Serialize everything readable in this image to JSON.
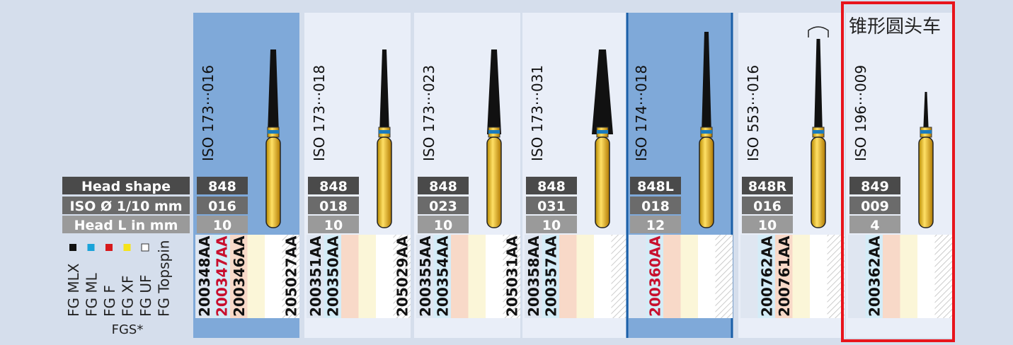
{
  "legend": {
    "row_labels": [
      "Head shape",
      "ISO Ø 1/10 mm",
      "Head L in mm"
    ],
    "grit_labels": [
      "FG MLX",
      "FG ML",
      "FG F",
      "FG XF",
      "FG UF",
      "FG Topspin"
    ],
    "grit_colors": [
      "#111111",
      "#1aa3d9",
      "#d7191c",
      "#f5e31a",
      "#ffffff",
      null
    ],
    "footer": "FGS*"
  },
  "heading": "锥形圆头车",
  "products": [
    {
      "iso": "ISO 173···016",
      "shape": "848",
      "diameter": "016",
      "length": "10",
      "highlighted": true,
      "codes": [
        {
          "text": "200348AA",
          "color": "#111111"
        },
        {
          "text": "200347AA",
          "color": "#c8102e"
        },
        {
          "text": "200346AA",
          "color": "#111111"
        },
        null,
        null,
        {
          "text": "205027AA",
          "color": "#111111"
        }
      ]
    },
    {
      "iso": "ISO 173···018",
      "shape": "848",
      "diameter": "018",
      "length": "10",
      "highlighted": false,
      "codes": [
        {
          "text": "200351AA",
          "color": "#111111"
        },
        {
          "text": "200350AA",
          "color": "#111111"
        },
        null,
        null,
        null,
        {
          "text": "205029AA",
          "color": "#111111"
        }
      ]
    },
    {
      "iso": "ISO 173···023",
      "shape": "848",
      "diameter": "023",
      "length": "10",
      "highlighted": false,
      "codes": [
        {
          "text": "200355AA",
          "color": "#111111"
        },
        {
          "text": "200354AA",
          "color": "#111111"
        },
        null,
        null,
        null,
        {
          "text": "205031AA",
          "color": "#111111"
        }
      ]
    },
    {
      "iso": "ISO 173···031",
      "shape": "848",
      "diameter": "031",
      "length": "10",
      "highlighted": false,
      "codes": [
        {
          "text": "200358AA",
          "color": "#111111"
        },
        {
          "text": "200357AA",
          "color": "#111111"
        },
        null,
        null,
        null,
        null
      ]
    },
    {
      "iso": "ISO 174···018",
      "shape": "848L",
      "diameter": "018",
      "length": "12",
      "highlighted": true,
      "codes": [
        null,
        {
          "text": "200360AA",
          "color": "#c8102e"
        },
        null,
        null,
        null,
        null
      ]
    },
    {
      "iso": "ISO 553···016",
      "shape": "848R",
      "diameter": "016",
      "length": "10",
      "highlighted": false,
      "codes": [
        null,
        {
          "text": "200762AA",
          "color": "#111111"
        },
        {
          "text": "200761AA",
          "color": "#111111"
        },
        null,
        null,
        null
      ]
    },
    {
      "iso": "ISO 196···009",
      "shape": "849",
      "diameter": "009",
      "length": "4",
      "highlighted": false,
      "codes": [
        null,
        {
          "text": "200362AA",
          "color": "#111111"
        },
        null,
        null,
        null,
        null
      ]
    }
  ]
}
